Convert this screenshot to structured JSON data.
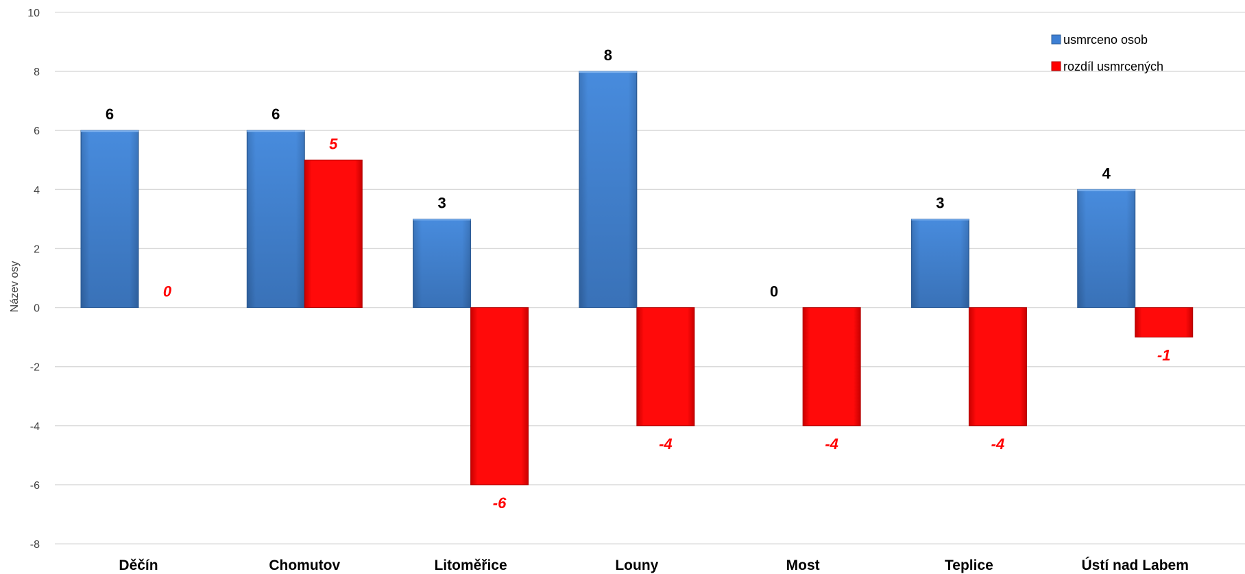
{
  "chart_data": {
    "type": "bar",
    "ylabel": "Název osy",
    "xlabel": "",
    "ylim": [
      -8,
      10
    ],
    "yticks": [
      -8,
      -6,
      -4,
      -2,
      0,
      2,
      4,
      6,
      8,
      10
    ],
    "grid": true,
    "legend_position": "top-right",
    "categories": [
      "Děčín",
      "Chomutov",
      "Litoměřice",
      "Louny",
      "Most",
      "Teplice",
      "Ústí nad Labem"
    ],
    "series": [
      {
        "name": "usmrceno osob",
        "color": "#3d7fd4",
        "values": [
          6,
          6,
          3,
          8,
          0,
          3,
          4
        ]
      },
      {
        "name": "rozdíl usmrcených",
        "color": "#ff0000",
        "values": [
          0,
          5,
          -6,
          -4,
          -4,
          -4,
          -1
        ]
      }
    ]
  }
}
